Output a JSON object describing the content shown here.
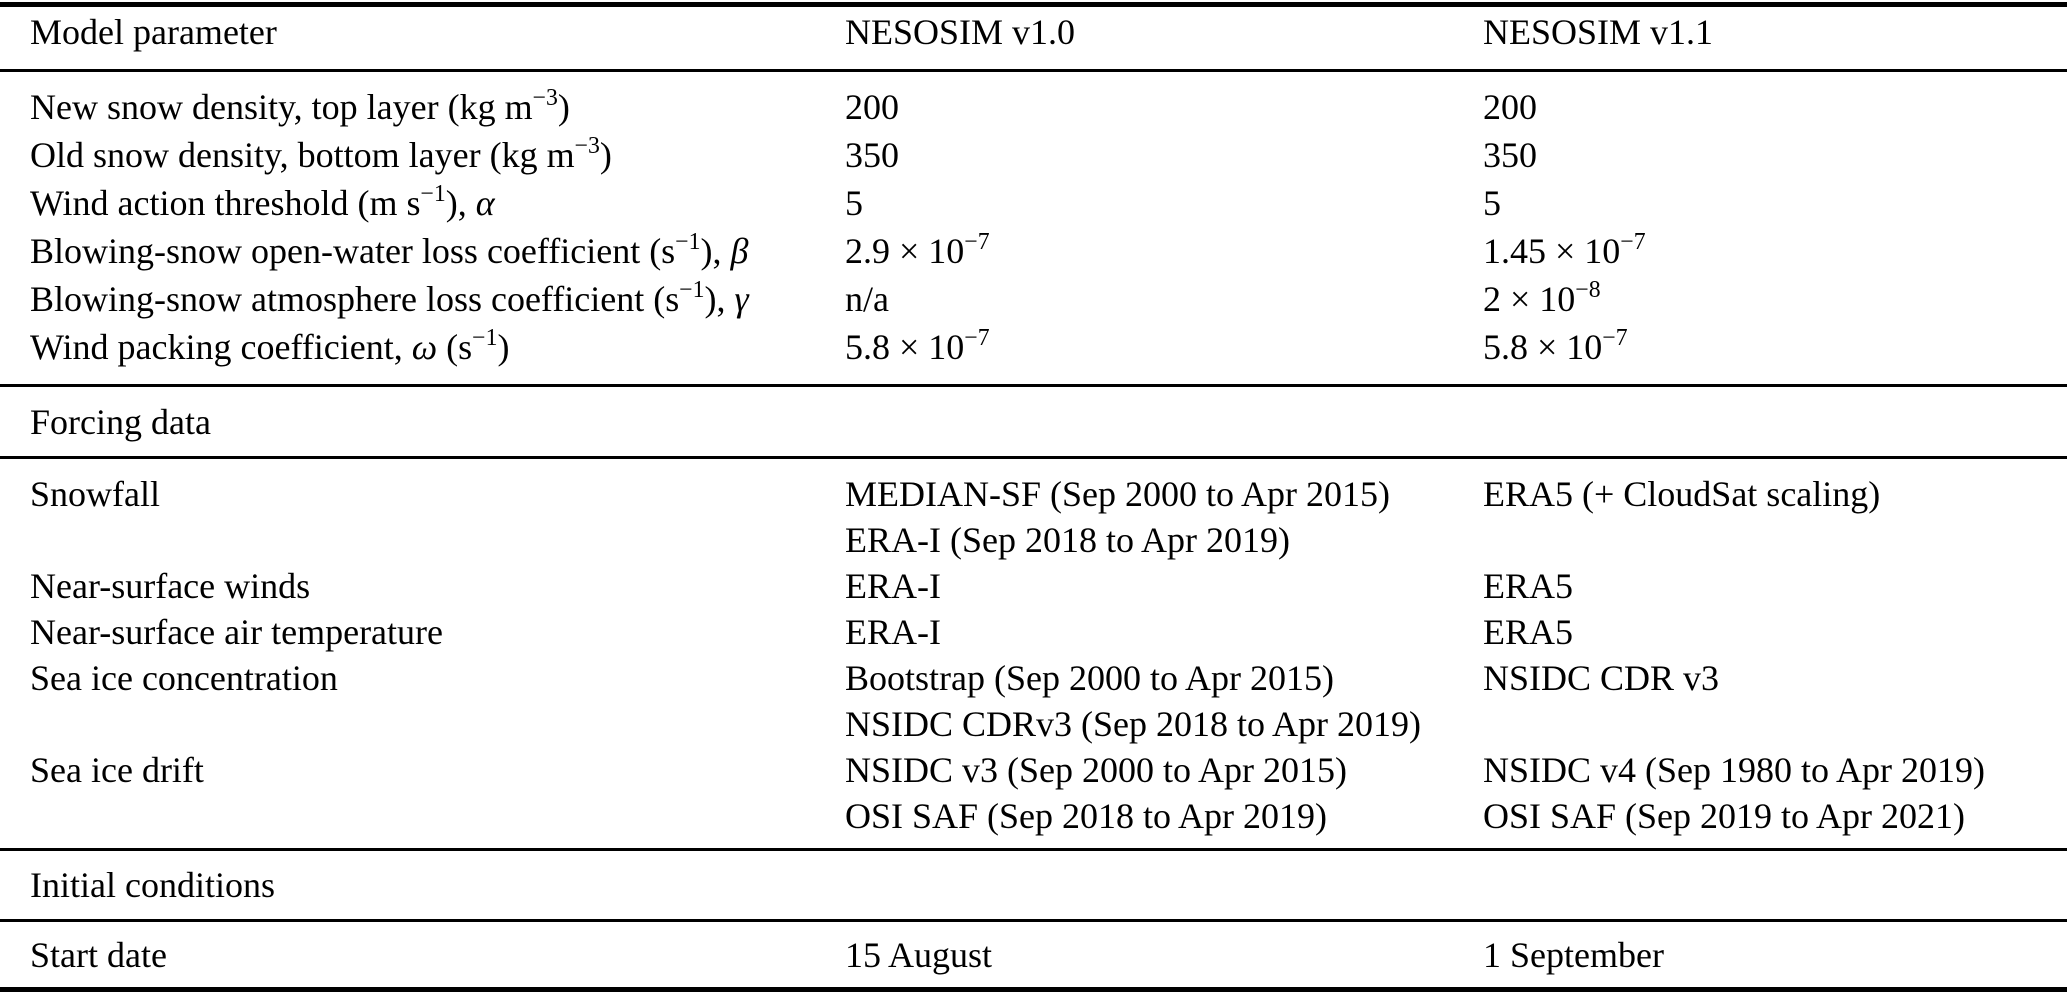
{
  "table": {
    "colors": {
      "text": "#000000",
      "rule": "#000000",
      "background": "#ffffff"
    },
    "columns": {
      "parameter": "Model parameter",
      "v10": "NESOSIM v1.0",
      "v11": "NESOSIM v1.1"
    },
    "param_rows": [
      {
        "label": "New snow density, top layer (kg m^{−3})",
        "v10": "200",
        "v11": "200"
      },
      {
        "label": "Old snow density, bottom layer (kg m^{−3})",
        "v10": "350",
        "v11": "350"
      },
      {
        "label": "Wind action threshold (m s^{−1}), *α*",
        "v10": "5",
        "v11": "5"
      },
      {
        "label": "Blowing-snow open-water loss coefficient (s^{−1}), *β*",
        "v10": "2.9 × 10^{−7}",
        "v11": "1.45 × 10^{−7}"
      },
      {
        "label": "Blowing-snow atmosphere loss coefficient (s^{−1}), *γ*",
        "v10": "n/a",
        "v11": "2 × 10^{−8}"
      },
      {
        "label": "Wind packing coefficient, *ω* (s^{−1})",
        "v10": "5.8 × 10^{−7}",
        "v11": "5.8 × 10^{−7}"
      }
    ],
    "section_forcing": "Forcing data",
    "forcing_rows": [
      {
        "label": "Snowfall",
        "v10": [
          "MEDIAN-SF (Sep 2000 to Apr 2015)",
          "ERA-I (Sep 2018 to Apr 2019)"
        ],
        "v11": [
          "ERA5 (+ CloudSat scaling)"
        ]
      },
      {
        "label": "Near-surface winds",
        "v10": [
          "ERA-I"
        ],
        "v11": [
          "ERA5"
        ]
      },
      {
        "label": "Near-surface air temperature",
        "v10": [
          "ERA-I"
        ],
        "v11": [
          "ERA5"
        ]
      },
      {
        "label": "Sea ice concentration",
        "v10": [
          "Bootstrap (Sep 2000 to Apr 2015)",
          "NSIDC CDRv3 (Sep 2018 to Apr 2019)"
        ],
        "v11": [
          "NSIDC CDR v3"
        ]
      },
      {
        "label": "Sea ice drift",
        "v10": [
          "NSIDC v3 (Sep 2000 to Apr 2015)",
          "OSI SAF (Sep 2018 to Apr 2019)"
        ],
        "v11": [
          "NSIDC v4 (Sep 1980 to Apr 2019)",
          "OSI SAF (Sep 2019 to Apr 2021)"
        ]
      }
    ],
    "section_initial": "Initial conditions",
    "initial_rows": [
      {
        "label": "Start date",
        "v10": "15 August",
        "v11": "1 September"
      }
    ]
  }
}
